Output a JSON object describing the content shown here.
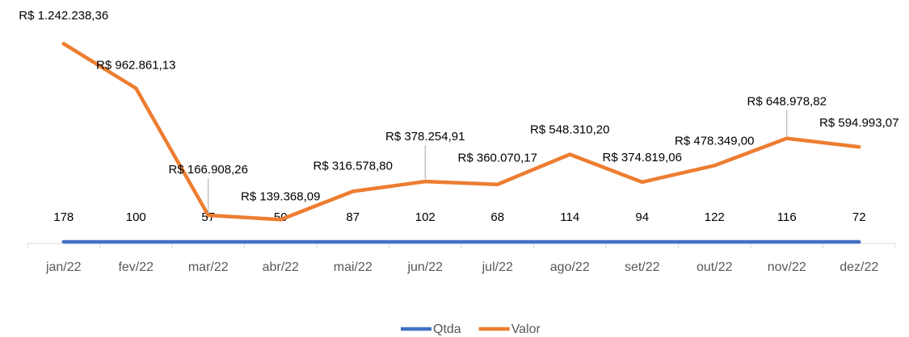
{
  "chart_data": {
    "type": "line",
    "categories": [
      "jan/22",
      "fev/22",
      "mar/22",
      "abr/22",
      "mai/22",
      "jun/22",
      "jul/22",
      "ago/22",
      "set/22",
      "out/22",
      "nov/22",
      "dez/22"
    ],
    "series": [
      {
        "name": "Qtda",
        "color": "#4472c4",
        "values": [
          178,
          100,
          57,
          50,
          87,
          102,
          68,
          114,
          94,
          122,
          116,
          72
        ]
      },
      {
        "name": "Valor",
        "color": "#ed7d31",
        "values": [
          1242238.36,
          962861.13,
          166908.26,
          139368.09,
          316578.8,
          378254.91,
          360070.17,
          548310.2,
          374819.06,
          478349.0,
          648978.82,
          594993.07
        ],
        "value_labels": [
          "R$ 1.242.238,36",
          "R$ 962.861,13",
          "R$ 166.908,26",
          "R$ 139.368,09",
          "R$ 316.578,80",
          "R$ 378.254,91",
          "R$ 360.070,17",
          "R$ 548.310,20",
          "R$ 374.819,06",
          "R$ 478.349,00",
          "R$ 648.978,82",
          "R$ 594.993,07"
        ]
      }
    ],
    "ylim": [
      0,
      1400000
    ],
    "legend": "bottom"
  }
}
